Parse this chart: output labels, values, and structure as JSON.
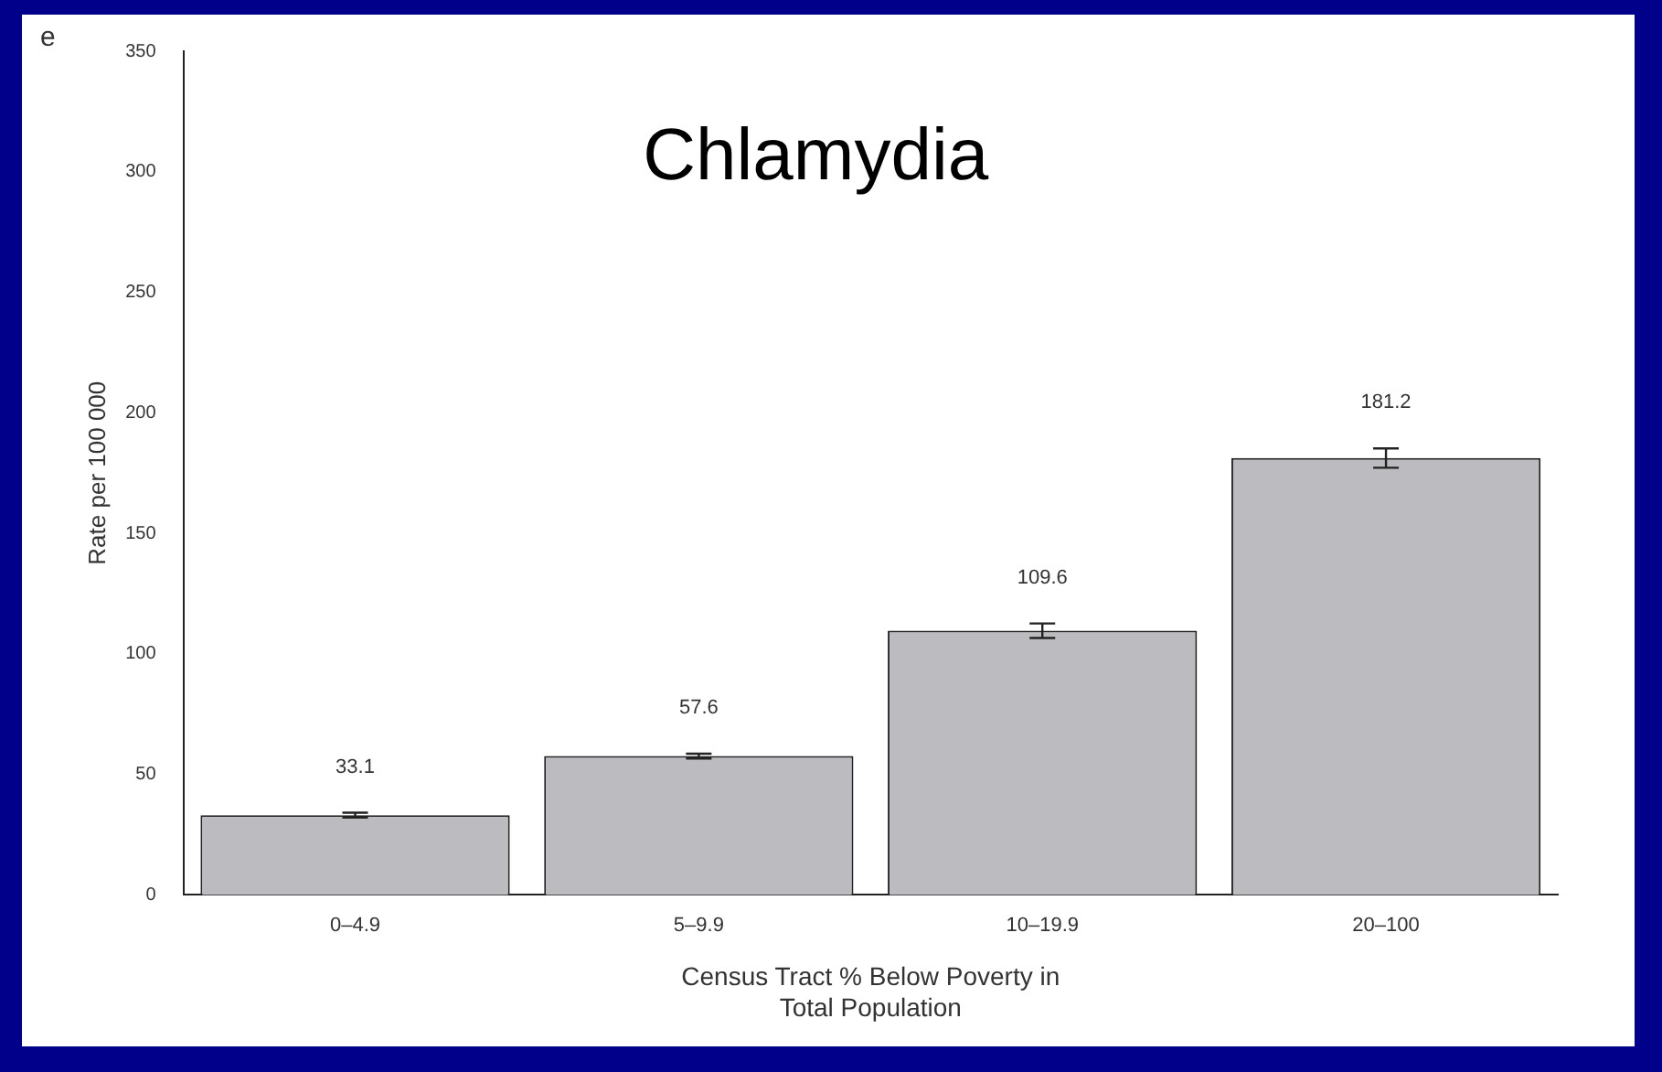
{
  "chart_data": {
    "type": "bar",
    "title": "Chlamydia",
    "xlabel": "Census Tract % Below Poverty in\nTotal Population",
    "ylabel": "Rate per 100 000",
    "categories": [
      "0–4.9",
      "5–9.9",
      "10–19.9",
      "20–100"
    ],
    "values": [
      33.1,
      57.6,
      109.6,
      181.2
    ],
    "errors": [
      1,
      1,
      3,
      4
    ],
    "color": "#bcbcc0",
    "ylim": [
      0,
      350
    ],
    "yticks": [
      0,
      50,
      100,
      150,
      200,
      250,
      300,
      350
    ],
    "grid": false,
    "legend": false,
    "data_labels": true,
    "annotations": [
      "e"
    ]
  }
}
